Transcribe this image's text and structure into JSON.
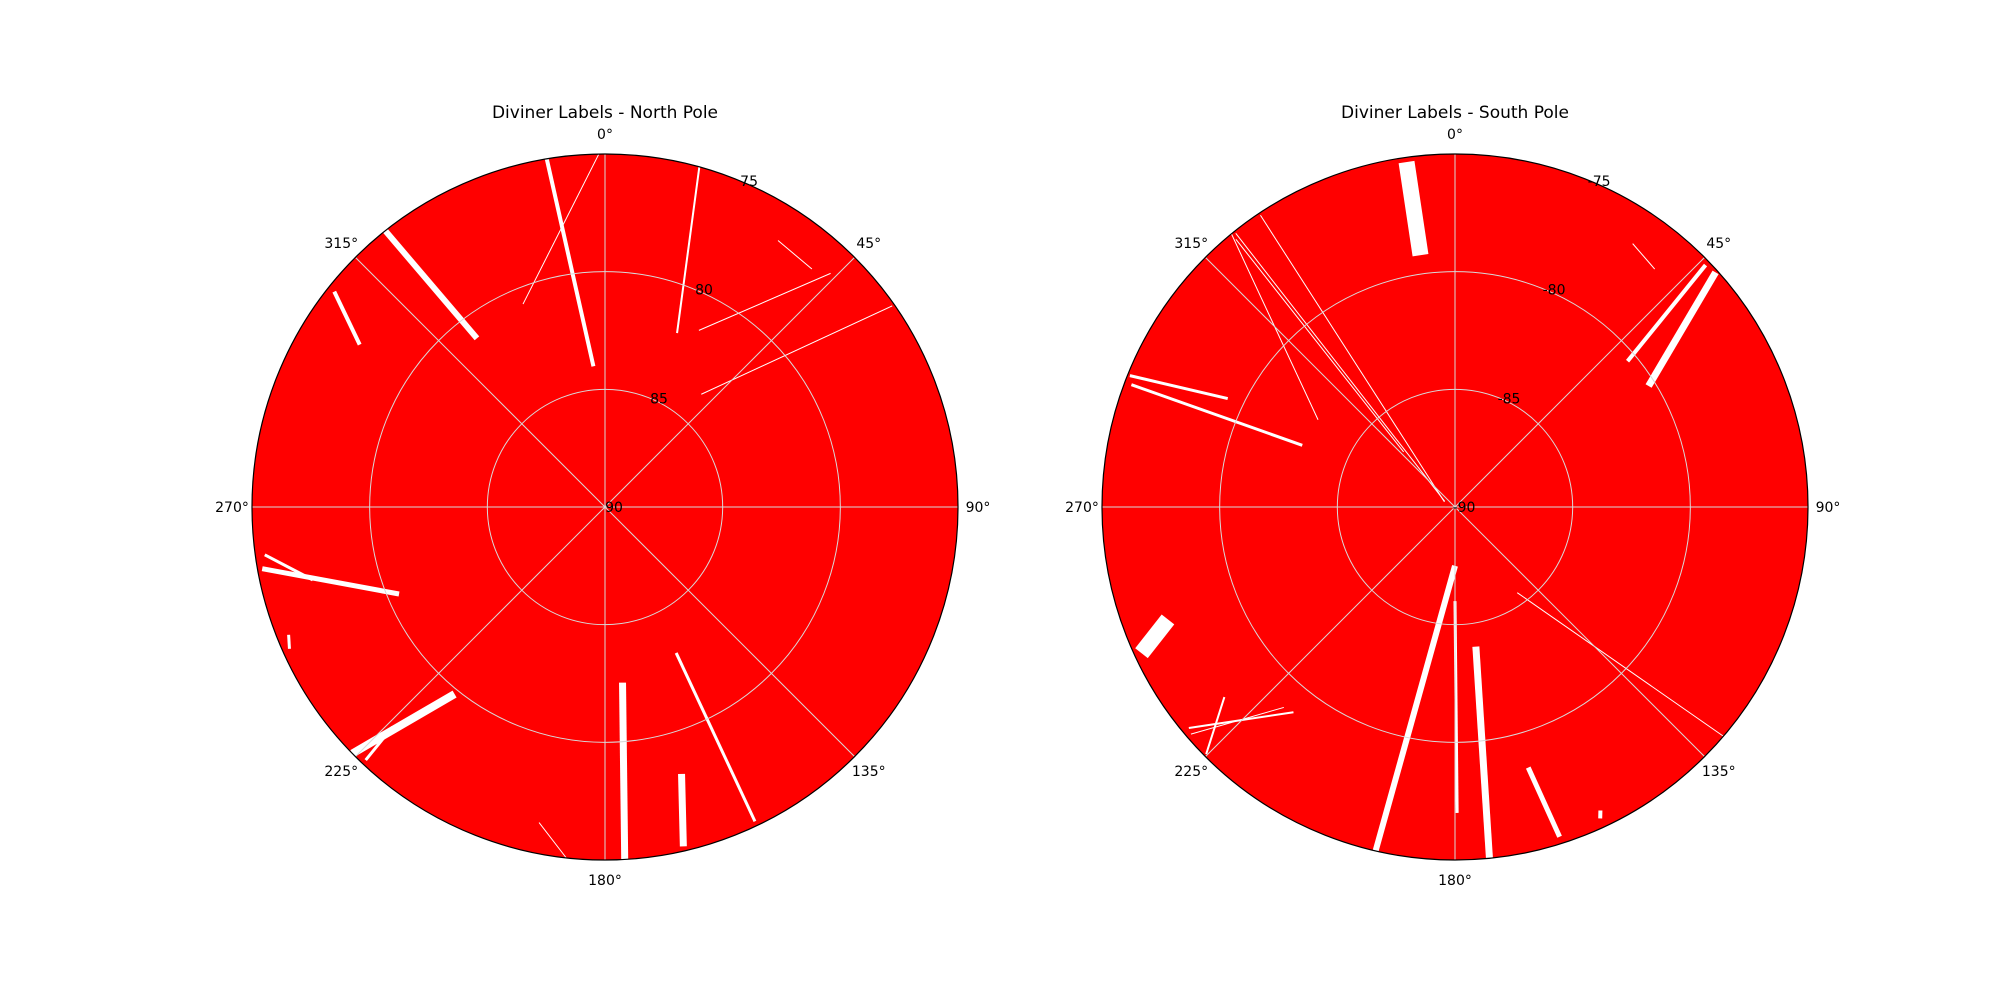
{
  "figure_title": "",
  "colors": {
    "label_fill": "#ff0000",
    "gap_fill": "#ffffff",
    "grid": "#d9d9d9",
    "frame": "#000000"
  },
  "chart_data": [
    {
      "type": "polar",
      "title": "Diviner Labels - North Pole",
      "pole": "north",
      "theta_zero_location": "top",
      "theta_direction": "clockwise",
      "theta_ticks_deg": [
        0,
        45,
        90,
        135,
        180,
        225,
        270,
        315
      ],
      "theta_tick_labels": [
        "0°",
        "45°",
        "90°",
        "135°",
        "180°",
        "225°",
        "270°",
        "315°"
      ],
      "r_tick_values": [
        90,
        85,
        80,
        75
      ],
      "r_tick_labels": [
        "90",
        "85",
        "80",
        "75"
      ],
      "r_tick_label_angle_deg": 22.5,
      "r_lim_lat": [
        90,
        75
      ],
      "grid": true,
      "fill_color": "#ff0000",
      "data_gaps": [
        {
          "lon_start": 15.5,
          "lat_start": 75.0,
          "lon_end": 22.5,
          "lat_end": 82.0,
          "width": 2
        },
        {
          "lon_start": 28.0,
          "lat_start": 81.5,
          "lon_end": 44.0,
          "lat_end": 76.2,
          "width": 1
        },
        {
          "lon_start": 40.5,
          "lat_start": 83.7,
          "lon_end": 55.0,
          "lat_end": 75.1,
          "width": 1
        },
        {
          "lon_start": 33.0,
          "lat_start": 76.5,
          "lon_end": 41.0,
          "lat_end": 76.6,
          "width": 1
        },
        {
          "lon_start": 154.0,
          "lat_start": 83.1,
          "lon_end": 154.5,
          "lat_end": 75.2,
          "width": 3
        },
        {
          "lon_start": 174.3,
          "lat_start": 82.5,
          "lon_end": 176.8,
          "lat_end": 75.0,
          "width": 7
        },
        {
          "lon_start": 164.0,
          "lat_start": 78.2,
          "lon_end": 167.0,
          "lat_end": 75.2,
          "width": 7
        },
        {
          "lon_start": 191.8,
          "lat_start": 76.3,
          "lon_end": 186.3,
          "lat_end": 75.0,
          "width": 1
        },
        {
          "lon_start": 218.8,
          "lat_start": 79.8,
          "lon_end": 225.7,
          "lat_end": 75.0,
          "width": 8
        },
        {
          "lon_start": 224.0,
          "lat_start": 77.0,
          "lon_end": 223.4,
          "lat_end": 75.2,
          "width": 3
        },
        {
          "lon_start": 247.1,
          "lat_start": 80.5,
          "lon_end": 259.8,
          "lat_end": 75.2,
          "width": 5
        },
        {
          "lon_start": 256.0,
          "lat_start": 77.2,
          "lon_end": 262.0,
          "lat_end": 75.4,
          "width": 3
        },
        {
          "lon_start": 245.8,
          "lat_start": 75.3,
          "lon_end": 248.0,
          "lat_end": 75.5,
          "width": 3
        },
        {
          "lon_start": 322.8,
          "lat_start": 81.0,
          "lon_end": 321.5,
          "lat_end": 75.0,
          "width": 6
        },
        {
          "lon_start": 303.5,
          "lat_start": 77.5,
          "lon_end": 308.5,
          "lat_end": 75.3,
          "width": 4
        },
        {
          "lon_start": 338.0,
          "lat_start": 80.7,
          "lon_end": 359.0,
          "lat_end": 75.0,
          "width": 1
        },
        {
          "lon_start": 355.3,
          "lat_start": 84.0,
          "lon_end": 350.5,
          "lat_end": 75.0,
          "width": 4
        }
      ]
    },
    {
      "type": "polar",
      "title": "Diviner Labels - South Pole",
      "pole": "south",
      "theta_zero_location": "top",
      "theta_direction": "clockwise",
      "theta_ticks_deg": [
        0,
        45,
        90,
        135,
        180,
        225,
        270,
        315
      ],
      "theta_tick_labels": [
        "0°",
        "45°",
        "90°",
        "135°",
        "180°",
        "225°",
        "270°",
        "315°"
      ],
      "r_tick_values": [
        -90,
        -85,
        -80,
        -75
      ],
      "r_tick_labels": [
        "-90",
        "-85",
        "-80",
        "-75"
      ],
      "r_tick_label_angle_deg": 22.5,
      "r_lim_lat": [
        -90,
        -75
      ],
      "grid": true,
      "fill_color": "#ff0000",
      "data_gaps": [
        {
          "lon_start": 34.0,
          "lat_start": -76.5,
          "lon_end": 40.0,
          "lat_end": -76.8,
          "width": 1
        },
        {
          "lon_start": 49.8,
          "lat_start": -80.4,
          "lon_end": 46.0,
          "lat_end": -75.2,
          "width": 4
        },
        {
          "lon_start": 58.0,
          "lat_start": -80.3,
          "lon_end": 48.0,
          "lat_end": -75.1,
          "width": 7
        },
        {
          "lon_start": 144.0,
          "lat_start": -85.5,
          "lon_end": 130.5,
          "lat_end": -75.0,
          "width": 1
        },
        {
          "lon_start": 154.4,
          "lat_start": -75.7,
          "lon_end": 155.0,
          "lat_end": -75.4,
          "width": 4
        },
        {
          "lon_start": 171.5,
          "lat_start": -84.0,
          "lon_end": 174.4,
          "lat_end": -75.0,
          "width": 7
        },
        {
          "lon_start": 164.3,
          "lat_start": -78.5,
          "lon_end": 162.4,
          "lat_end": -75.3,
          "width": 5
        },
        {
          "lon_start": 180.0,
          "lat_start": -87.5,
          "lon_end": 193.0,
          "lat_end": -75.0,
          "width": 6
        },
        {
          "lon_start": 180.0,
          "lat_start": -86.0,
          "lon_end": 179.6,
          "lat_end": -77.0,
          "width": 3
        },
        {
          "lon_start": 230.5,
          "lat_start": -77.3,
          "lon_end": 225.2,
          "lat_end": -75.1,
          "width": 2
        },
        {
          "lon_start": 220.5,
          "lat_start": -78.8,
          "lon_end": 229.3,
          "lat_end": -75.2,
          "width": 1
        },
        {
          "lon_start": 218.2,
          "lat_start": -78.9,
          "lon_end": 230.3,
          "lat_end": -75.3,
          "width": 2
        },
        {
          "lon_start": 248.6,
          "lat_start": -76.9,
          "lon_end": 245.0,
          "lat_end": -75.3,
          "width": 16
        },
        {
          "lon_start": 292.0,
          "lat_start": -83.0,
          "lon_end": 290.7,
          "lat_end": -75.3,
          "width": 3
        },
        {
          "lon_start": 295.5,
          "lat_start": -79.3,
          "lon_end": 292.0,
          "lat_end": -75.1,
          "width": 3
        },
        {
          "lon_start": 302.5,
          "lat_start": -83.1,
          "lon_end": 320.7,
          "lat_end": -75.0,
          "width": 1
        },
        {
          "lon_start": 296.0,
          "lat_start": -89.5,
          "lon_end": 326.3,
          "lat_end": -75.1,
          "width": 1
        },
        {
          "lon_start": 299.0,
          "lat_start": -89.5,
          "lon_end": 321.3,
          "lat_end": -75.1,
          "width": 1
        },
        {
          "lon_start": 317.0,
          "lat_start": -86.8,
          "lon_end": 320.7,
          "lat_end": -75.3,
          "width": 1
        },
        {
          "lon_start": 352.2,
          "lat_start": -79.2,
          "lon_end": 352.0,
          "lat_end": -75.2,
          "width": 16
        }
      ]
    }
  ]
}
